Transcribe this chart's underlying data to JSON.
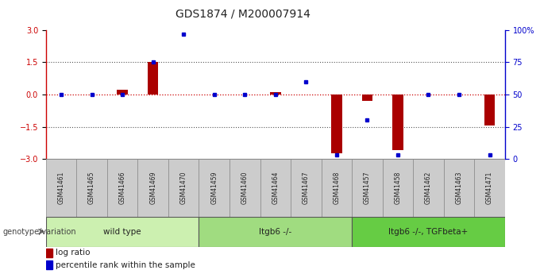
{
  "title": "GDS1874 / M200007914",
  "samples": [
    "GSM41461",
    "GSM41465",
    "GSM41466",
    "GSM41469",
    "GSM41470",
    "GSM41459",
    "GSM41460",
    "GSM41464",
    "GSM41467",
    "GSM41468",
    "GSM41457",
    "GSM41458",
    "GSM41462",
    "GSM41463",
    "GSM41471"
  ],
  "log_ratio": [
    0.0,
    0.0,
    0.22,
    1.52,
    0.0,
    0.0,
    0.0,
    0.1,
    0.0,
    -2.75,
    -0.3,
    -2.6,
    0.0,
    0.0,
    -1.45
  ],
  "percentile_rank": [
    50,
    50,
    50,
    75,
    97,
    50,
    50,
    50,
    60,
    3,
    30,
    3,
    50,
    50,
    3
  ],
  "groups": [
    {
      "label": "wild type",
      "start": 0,
      "end": 4,
      "color": "#ccf0b0"
    },
    {
      "label": "Itgb6 -/-",
      "start": 5,
      "end": 9,
      "color": "#a0dc80"
    },
    {
      "label": "Itgb6 -/-, TGFbeta+",
      "start": 10,
      "end": 14,
      "color": "#66cc44"
    }
  ],
  "ylim_left": [
    -3,
    3
  ],
  "ylim_right": [
    0,
    100
  ],
  "yticks_left": [
    -3,
    -1.5,
    0,
    1.5,
    3
  ],
  "yticks_right": [
    0,
    25,
    50,
    75,
    100
  ],
  "ytick_labels_right": [
    "0",
    "25",
    "50",
    "75",
    "100%"
  ],
  "bar_color": "#aa0000",
  "dot_color": "#0000cc",
  "zero_line_color": "#cc0000",
  "hline_color": "#555555",
  "bg_color": "#ffffff",
  "plot_bg_color": "#ffffff",
  "tick_box_color": "#cccccc",
  "legend_label_ratio": "log ratio",
  "legend_label_percentile": "percentile rank within the sample"
}
